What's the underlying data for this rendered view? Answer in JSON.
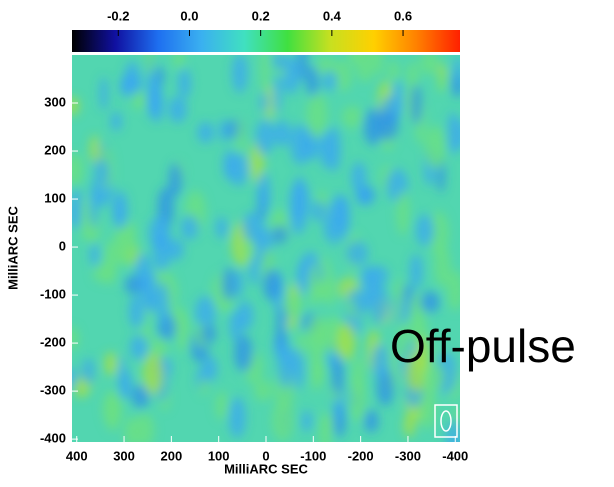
{
  "chart_data": {
    "type": "heatmap",
    "annotation": "Off-pulse",
    "xlabel": "MilliARC SEC",
    "ylabel": "MilliARC SEC",
    "xlim": [
      410,
      -410
    ],
    "ylim": [
      -406,
      400
    ],
    "xticks": [
      400,
      300,
      200,
      100,
      0,
      -100,
      -200,
      -300,
      -400
    ],
    "yticks": [
      300,
      200,
      100,
      0,
      -100,
      -200,
      -300,
      -400
    ],
    "colorbar": {
      "lim": [
        -0.33,
        0.76
      ],
      "ticks": [
        -0.2,
        {
          "value": 0,
          "label": "0.0"
        },
        0.2,
        0.4,
        0.6
      ],
      "colors": [
        "#000000",
        "#1010a0",
        "#1e6ff0",
        "#3ab0f0",
        "#40e0c0",
        "#40e040",
        "#c8e020",
        "#ffd000",
        "#ff8000",
        "#ff2000"
      ]
    }
  }
}
